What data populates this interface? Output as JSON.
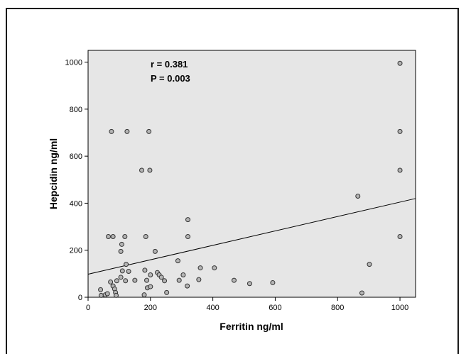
{
  "chart_data": {
    "type": "scatter",
    "xlabel": "Ferritin ng/ml",
    "ylabel": "Hepcidin ng/ml",
    "xlim": [
      0,
      1050
    ],
    "ylim": [
      0,
      1050
    ],
    "xticks": [
      "0",
      "200",
      "400",
      "600",
      "800",
      "1000"
    ],
    "yticks": [
      "0",
      "200",
      "400",
      "600",
      "800",
      "1000"
    ],
    "annotations": [
      "r = 0.381",
      "P = 0.003"
    ],
    "grid": false,
    "colors": {
      "plot_background": "#e6e6e6",
      "marker_fill": "#b4b4b4",
      "marker_stroke": "#333333",
      "line": "#000000"
    },
    "fit_line": {
      "x": [
        0,
        1050
      ],
      "y": [
        98,
        420
      ]
    },
    "points": [
      [
        40,
        32
      ],
      [
        42,
        8
      ],
      [
        55,
        10
      ],
      [
        62,
        15
      ],
      [
        65,
        258
      ],
      [
        72,
        65
      ],
      [
        75,
        705
      ],
      [
        80,
        258
      ],
      [
        80,
        48
      ],
      [
        85,
        35
      ],
      [
        88,
        20
      ],
      [
        90,
        8
      ],
      [
        92,
        70
      ],
      [
        105,
        85
      ],
      [
        105,
        195
      ],
      [
        108,
        225
      ],
      [
        110,
        112
      ],
      [
        118,
        258
      ],
      [
        120,
        70
      ],
      [
        122,
        140
      ],
      [
        125,
        705
      ],
      [
        130,
        110
      ],
      [
        150,
        72
      ],
      [
        172,
        540
      ],
      [
        180,
        10
      ],
      [
        182,
        115
      ],
      [
        185,
        258
      ],
      [
        188,
        72
      ],
      [
        190,
        40
      ],
      [
        195,
        705
      ],
      [
        198,
        540
      ],
      [
        200,
        45
      ],
      [
        200,
        95
      ],
      [
        215,
        195
      ],
      [
        222,
        105
      ],
      [
        228,
        95
      ],
      [
        235,
        85
      ],
      [
        245,
        70
      ],
      [
        252,
        20
      ],
      [
        288,
        155
      ],
      [
        292,
        72
      ],
      [
        305,
        95
      ],
      [
        318,
        48
      ],
      [
        320,
        330
      ],
      [
        320,
        258
      ],
      [
        355,
        75
      ],
      [
        360,
        125
      ],
      [
        405,
        125
      ],
      [
        468,
        72
      ],
      [
        518,
        58
      ],
      [
        592,
        62
      ],
      [
        865,
        430
      ],
      [
        878,
        18
      ],
      [
        902,
        140
      ],
      [
        1000,
        995
      ],
      [
        1000,
        705
      ],
      [
        1000,
        540
      ],
      [
        1000,
        258
      ]
    ]
  }
}
